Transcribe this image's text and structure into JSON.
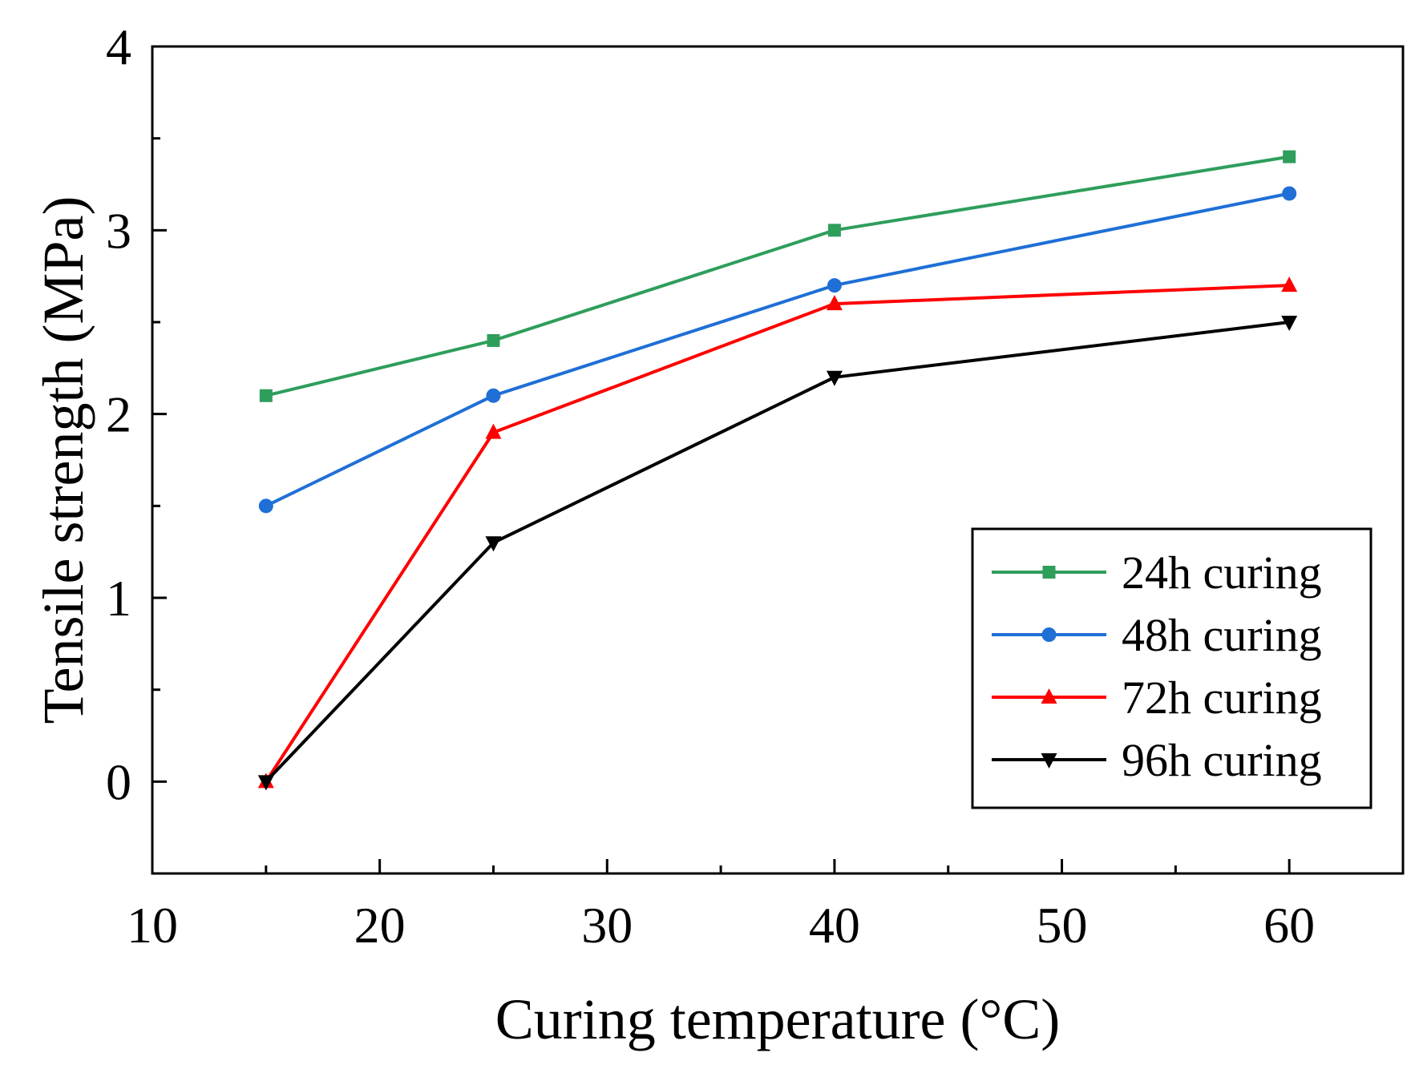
{
  "chart_data": {
    "type": "line",
    "title": "",
    "xlabel": "Curing temperature (°C)",
    "ylabel": "Tensile strength (MPa)",
    "xlim": [
      10,
      65
    ],
    "ylim": [
      -0.5,
      4
    ],
    "x_ticks": [
      10,
      20,
      30,
      40,
      50,
      60
    ],
    "y_ticks": [
      0,
      1,
      2,
      3,
      4
    ],
    "x_minor_ticks": [
      15,
      25,
      35,
      45,
      55
    ],
    "y_minor_ticks": [
      0.5,
      1.5,
      2.5,
      3.5
    ],
    "x_tick_labels": [
      "10",
      "20",
      "30",
      "40",
      "50",
      "60"
    ],
    "y_tick_labels": [
      "0",
      "1",
      "2",
      "3",
      "4"
    ],
    "grid": false,
    "legend_position": "lower-right",
    "x": [
      15,
      25,
      40,
      60
    ],
    "series": [
      {
        "name": "24h curing",
        "values": [
          2.1,
          2.4,
          3.0,
          3.4
        ],
        "color": "#2e9e5b",
        "marker": "square"
      },
      {
        "name": "48h curing",
        "values": [
          1.5,
          2.1,
          2.7,
          3.2
        ],
        "color": "#1f6fd6",
        "marker": "circle"
      },
      {
        "name": "72h curing",
        "values": [
          0.0,
          1.9,
          2.6,
          2.7
        ],
        "color": "#ff0000",
        "marker": "triangle-up"
      },
      {
        "name": "96h curing",
        "values": [
          0.0,
          1.3,
          2.2,
          2.5
        ],
        "color": "#000000",
        "marker": "triangle-down"
      }
    ]
  }
}
